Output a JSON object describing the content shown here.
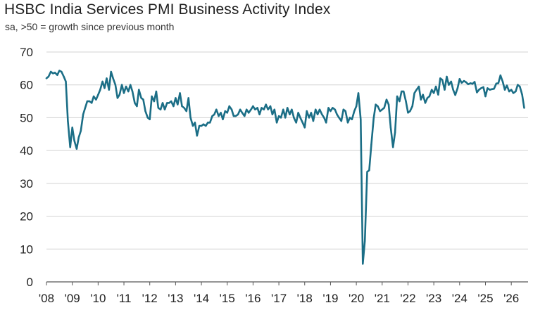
{
  "chart_data": {
    "type": "line",
    "title": "HSBC India Services PMI Business Activity Index",
    "subtitle": "sa, >50 = growth since previous month",
    "xlabel": "",
    "ylabel": "",
    "ylim": [
      0,
      70
    ],
    "yticks": [
      "0",
      "10",
      "20",
      "30",
      "40",
      "50",
      "60",
      "70"
    ],
    "xlim": [
      2008,
      2026.65
    ],
    "xticks": [
      "'08",
      "'09",
      "'10",
      "'11",
      "'12",
      "'13",
      "'14",
      "'15",
      "'16",
      "'17",
      "'18",
      "'19",
      "'20",
      "'21",
      "'22",
      "'23",
      "'24",
      "'25",
      "'26"
    ],
    "grid": "horizontal",
    "legend": "none",
    "line_color": "#1b6e86",
    "series": [
      {
        "x": [
          2008.0,
          2008.08,
          2008.17,
          2008.25,
          2008.33,
          2008.42,
          2008.5,
          2008.58,
          2008.67,
          2008.75,
          2008.83,
          2008.92,
          2009.0,
          2009.08,
          2009.17,
          2009.25,
          2009.33,
          2009.42,
          2009.5,
          2009.58,
          2009.67,
          2009.75,
          2009.83,
          2009.92,
          2010.0,
          2010.08,
          2010.17,
          2010.25,
          2010.33,
          2010.42,
          2010.5,
          2010.58,
          2010.67,
          2010.75,
          2010.83,
          2010.92,
          2011.0,
          2011.08,
          2011.17,
          2011.25,
          2011.33,
          2011.42,
          2011.5,
          2011.58,
          2011.67,
          2011.75,
          2011.83,
          2011.92,
          2012.0,
          2012.08,
          2012.17,
          2012.25,
          2012.33,
          2012.42,
          2012.5,
          2012.58,
          2012.67,
          2012.75,
          2012.83,
          2012.92,
          2013.0,
          2013.08,
          2013.17,
          2013.25,
          2013.33,
          2013.42,
          2013.5,
          2013.58,
          2013.67,
          2013.75,
          2013.83,
          2013.92,
          2014.0,
          2014.08,
          2014.17,
          2014.25,
          2014.33,
          2014.42,
          2014.5,
          2014.58,
          2014.67,
          2014.75,
          2014.83,
          2014.92,
          2015.0,
          2015.08,
          2015.17,
          2015.25,
          2015.33,
          2015.42,
          2015.5,
          2015.58,
          2015.67,
          2015.75,
          2015.83,
          2015.92,
          2016.0,
          2016.08,
          2016.17,
          2016.25,
          2016.33,
          2016.42,
          2016.5,
          2016.58,
          2016.67,
          2016.75,
          2016.83,
          2016.92,
          2017.0,
          2017.08,
          2017.17,
          2017.25,
          2017.33,
          2017.42,
          2017.5,
          2017.58,
          2017.67,
          2017.75,
          2017.83,
          2017.92,
          2018.0,
          2018.08,
          2018.17,
          2018.25,
          2018.33,
          2018.42,
          2018.5,
          2018.58,
          2018.67,
          2018.75,
          2018.83,
          2018.92,
          2019.0,
          2019.08,
          2019.17,
          2019.25,
          2019.33,
          2019.42,
          2019.5,
          2019.58,
          2019.67,
          2019.75,
          2019.83,
          2019.92,
          2020.0,
          2020.08,
          2020.17,
          2020.25,
          2020.33,
          2020.42,
          2020.5,
          2020.58,
          2020.67,
          2020.75,
          2020.83,
          2020.92,
          2021.0,
          2021.08,
          2021.17,
          2021.25,
          2021.33,
          2021.42,
          2021.5,
          2021.58,
          2021.67,
          2021.75,
          2021.83,
          2021.92,
          2022.0,
          2022.08,
          2022.17,
          2022.25,
          2022.33,
          2022.42,
          2022.5,
          2022.58,
          2022.67,
          2022.75,
          2022.83,
          2022.92,
          2023.0,
          2023.08,
          2023.17,
          2023.25,
          2023.33,
          2023.42,
          2023.5,
          2023.58,
          2023.67,
          2023.75,
          2023.83,
          2023.92,
          2024.0,
          2024.08,
          2024.17,
          2024.25,
          2024.33,
          2024.42,
          2024.5,
          2024.58,
          2024.67,
          2024.75,
          2024.83,
          2024.92,
          2025.0,
          2025.08,
          2025.17,
          2025.25,
          2025.33,
          2025.42,
          2025.5,
          2025.58,
          2025.67,
          2025.75,
          2025.83,
          2025.92,
          2026.0,
          2026.08,
          2026.17,
          2026.25,
          2026.33,
          2026.42,
          2026.5
        ],
        "values": [
          62.0,
          62.5,
          64.0,
          63.5,
          63.7,
          63.0,
          64.3,
          64.0,
          62.5,
          61.0,
          49.0,
          41.0,
          47.0,
          43.0,
          40.5,
          44.0,
          46.0,
          51.0,
          53.0,
          55.0,
          55.0,
          54.5,
          56.5,
          55.5,
          57.0,
          58.5,
          61.0,
          59.0,
          62.0,
          58.5,
          64.0,
          62.0,
          60.0,
          56.0,
          57.0,
          60.0,
          57.5,
          59.5,
          58.0,
          60.0,
          58.0,
          54.5,
          53.5,
          58.5,
          56.0,
          55.5,
          52.0,
          50.0,
          49.5,
          56.5,
          55.0,
          58.0,
          53.0,
          52.5,
          54.5,
          52.5,
          54.5,
          54.5,
          55.0,
          53.5,
          56.0,
          54.0,
          57.5,
          53.5,
          53.0,
          52.0,
          56.0,
          50.0,
          47.5,
          48.5,
          44.5,
          47.5,
          47.5,
          48.0,
          47.5,
          48.5,
          48.5,
          50.5,
          51.0,
          52.5,
          50.5,
          51.5,
          49.5,
          52.0,
          51.5,
          53.5,
          52.5,
          50.5,
          50.5,
          51.0,
          52.5,
          51.5,
          50.5,
          52.5,
          51.5,
          52.5,
          53.5,
          52.5,
          53.0,
          51.0,
          53.0,
          52.5,
          54.0,
          52.5,
          53.5,
          51.0,
          52.5,
          48.5,
          50.5,
          50.0,
          52.5,
          50.0,
          53.0,
          51.0,
          52.5,
          50.0,
          48.5,
          51.5,
          50.0,
          48.5,
          47.0,
          52.0,
          50.0,
          51.5,
          49.0,
          52.5,
          51.0,
          52.5,
          51.0,
          50.0,
          48.5,
          53.0,
          52.0,
          53.0,
          52.5,
          51.0,
          50.0,
          49.0,
          52.5,
          52.0,
          48.5,
          50.0,
          49.5,
          52.0,
          53.5,
          57.5,
          49.5,
          5.5,
          12.5,
          33.5,
          34.0,
          41.8,
          49.8,
          54.0,
          53.5,
          52.0,
          52.5,
          53.0,
          55.5,
          54.0,
          47.0,
          41.0,
          45.5,
          56.5,
          55.0,
          58.0,
          58.0,
          55.0,
          51.5,
          52.0,
          53.5,
          57.5,
          58.5,
          59.5,
          55.5,
          57.0,
          54.5,
          56.0,
          56.5,
          58.5,
          57.5,
          59.5,
          57.0,
          62.0,
          61.5,
          58.5,
          62.5,
          60.0,
          61.0,
          58.5,
          56.9,
          59.0,
          61.8,
          60.6,
          61.2,
          60.8,
          60.2,
          60.5,
          60.3,
          60.9,
          57.7,
          58.5,
          59.0,
          59.3,
          56.5,
          59.0,
          58.5,
          58.7,
          58.8,
          60.4,
          60.5,
          62.9,
          60.9,
          58.5,
          59.8,
          58.0,
          58.5,
          57.5,
          58.0,
          60.0,
          59.5,
          57.0,
          53.0
        ]
      }
    ]
  }
}
